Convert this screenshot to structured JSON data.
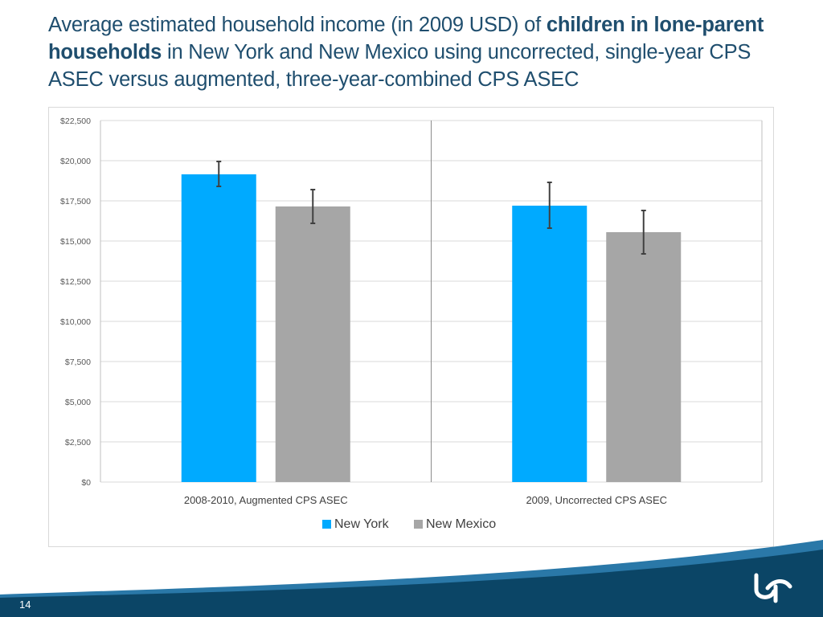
{
  "title": {
    "part1": "Average estimated household income (in 2009 USD) of ",
    "bold1": "children in lone-parent households",
    "part2": " in New York and New Mexico using uncorrected, single-year CPS ASEC versus augmented, three-year-combined CPS ASEC"
  },
  "chart_data": {
    "type": "bar",
    "title": "Average estimated household income (in 2009 USD) of children in lone-parent households in New York and New Mexico using uncorrected, single-year CPS ASEC versus augmented, three-year-combined CPS ASEC",
    "categories": [
      "2008-2010, Augmented CPS ASEC",
      "2009, Uncorrected CPS ASEC"
    ],
    "series": [
      {
        "name": "New York",
        "color": "#00aaff",
        "values": [
          19150,
          17200
        ],
        "error_low": [
          18400,
          15800
        ],
        "error_high": [
          19950,
          18650
        ]
      },
      {
        "name": "New Mexico",
        "color": "#a6a6a6",
        "values": [
          17150,
          15550
        ],
        "error_low": [
          16100,
          14200
        ],
        "error_high": [
          18200,
          16900
        ]
      }
    ],
    "ylim": [
      0,
      22500
    ],
    "yticks": [
      0,
      2500,
      5000,
      7500,
      10000,
      12500,
      15000,
      17500,
      20000,
      22500
    ],
    "ytick_labels": [
      "$0",
      "$2,500",
      "$5,000",
      "$7,500",
      "$10,000",
      "$12,500",
      "$15,000",
      "$17,500",
      "$20,000",
      "$22,500"
    ],
    "grid": true,
    "legend": "bottom-center",
    "xlabel": "",
    "ylabel": ""
  },
  "footer": {
    "page_number": "14",
    "logo": "university-logo-icon"
  },
  "colors": {
    "title": "#1f4e6e",
    "footer_dark": "#0a4a6e",
    "footer_light": "#1f6fa0"
  }
}
